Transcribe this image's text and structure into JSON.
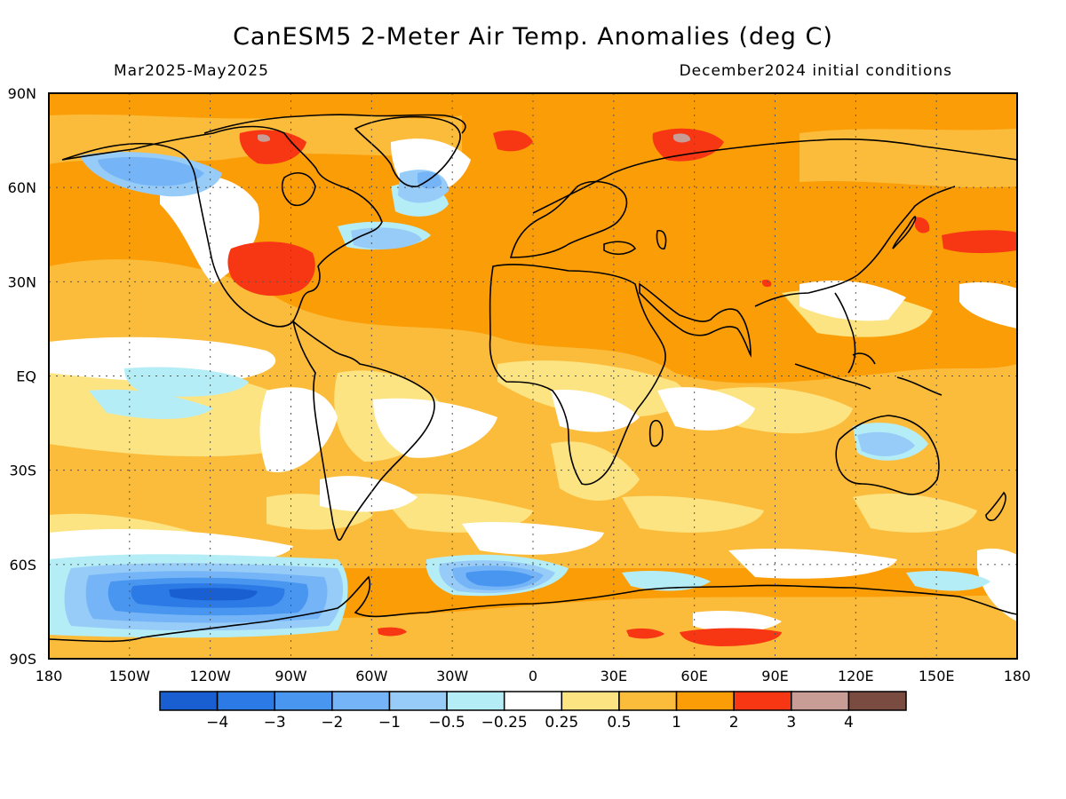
{
  "title": "CanESM5 2-Meter Air Temp. Anomalies (deg C)",
  "period": "Mar2025-May2025",
  "init": "December2024 initial conditions",
  "lat_labels": [
    "90N",
    "60N",
    "30N",
    "EQ",
    "30S",
    "60S",
    "90S"
  ],
  "lon_labels": [
    "180",
    "150W",
    "120W",
    "90W",
    "60W",
    "30W",
    "0",
    "30E",
    "60E",
    "90E",
    "120E",
    "150E",
    "180"
  ],
  "colorbar": {
    "colors": [
      "#1a5fd1",
      "#2b7ae6",
      "#4896f0",
      "#75b4f6",
      "#97ccf8",
      "#b5edf6",
      "#ffffff",
      "#fde482",
      "#fcbc3b",
      "#fb9d07",
      "#f73614",
      "#c79d95",
      "#7a4b40"
    ],
    "labels": [
      "−4",
      "−3",
      "−2",
      "−1",
      "−0.5",
      "−0.25",
      "0.25",
      "0.5",
      "1",
      "2",
      "3",
      "4"
    ]
  },
  "anomaly_regions": [
    {
      "name": "Alaska / NE Pacific",
      "class": "-2 to -1"
    },
    {
      "name": "Central USA",
      "class": "2 to 3"
    },
    {
      "name": "Greenland",
      "class": "-1 to -0.5"
    },
    {
      "name": "Arctic Canada",
      "class": "2 to 3"
    },
    {
      "name": "Barents / Kara Sea",
      "class": "2 to 3"
    },
    {
      "name": "NW Pacific",
      "class": "2 to 3"
    },
    {
      "name": "Tropical E Pacific",
      "class": "-0.5 to -0.25"
    },
    {
      "name": "Bellingshausen / Amundsen Sea",
      "class": "-4 to -2"
    },
    {
      "name": "Weddell Sea",
      "class": "-3 to -1"
    },
    {
      "name": "East Antarctica coast",
      "class": "2 to 3"
    }
  ]
}
